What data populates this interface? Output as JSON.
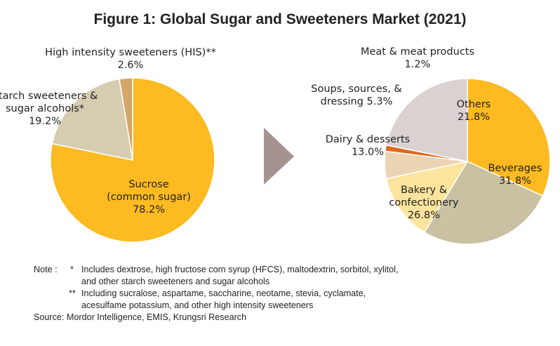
{
  "title": "Figure 1: Global Sugar and Sweeteners Market (2021)",
  "chart_data": [
    {
      "type": "pie",
      "slices": [
        {
          "label_lines": [
            "Sucrose",
            "(common sugar)"
          ],
          "value_text": "78.2%",
          "value": 78.2,
          "color": "#FDBA21"
        },
        {
          "label_lines": [
            "Starch sweeteners &",
            "sugar alcohols*"
          ],
          "value_text": "19.2%",
          "value": 19.2,
          "color": "#D6CDB0"
        },
        {
          "label_lines": [
            "High intensity  sweeteners  (HIS)**"
          ],
          "value_text": "2.6%",
          "value": 2.6,
          "color": "#D7A768"
        }
      ]
    },
    {
      "type": "pie",
      "slices": [
        {
          "label_lines": [
            "Beverages"
          ],
          "value_text": "31.8%",
          "value": 31.8,
          "color": "#FDBA21"
        },
        {
          "label_lines": [
            "Bakery &",
            "confectionery"
          ],
          "value_text": "26.8%",
          "value": 26.8,
          "color": "#C9C1A2"
        },
        {
          "label_lines": [
            "Dairy & desserts"
          ],
          "value_text": "13.0%",
          "value": 13.0,
          "color": "#FDE49D"
        },
        {
          "label_lines": [
            "Soups, sources, &",
            "dressing 5.3%"
          ],
          "value_text": "",
          "value": 5.3,
          "color": "#EBD4B3"
        },
        {
          "label_lines": [
            "Meat & meat products"
          ],
          "value_text": "1.2%",
          "value": 1.2,
          "color": "#D96B1E"
        },
        {
          "label_lines": [
            "Others"
          ],
          "value_text": "21.8%",
          "value": 21.8,
          "color": "#D9D2D0"
        }
      ]
    }
  ],
  "arrow_color": "#A69290",
  "note": {
    "prefix": "Note :",
    "star1": "*",
    "line1": "Includes dextrose, high fructose corn syrup (HFCS), maltodextrin, sorbitol, xylitol,",
    "line2": "and other starch sweeteners and sugar alcohols",
    "star2": "**",
    "line3": "Including sucralose, aspartame, saccharine, neotame, stevia, cyclamate,",
    "line4": "acesulfame potassium, and other high intensity sweeteners"
  },
  "source": "Source: Mordor Intelligence, EMIS, Krungsri Research"
}
